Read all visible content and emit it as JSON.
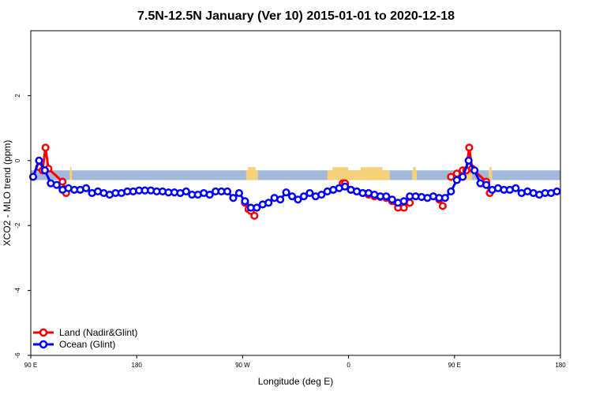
{
  "chart_data": {
    "type": "line",
    "title": "7.5N-12.5N January (Ver 10)   2015-01-01 to 2020-12-18",
    "xlabel": "Longitude (deg E)",
    "ylabel": "XCO2 - MLO trend (ppm)",
    "xlim": [
      90,
      540
    ],
    "ylim": [
      -6,
      4
    ],
    "x_ticks": [
      {
        "value": 90,
        "label": "90 E"
      },
      {
        "value": 180,
        "label": "180"
      },
      {
        "value": 270,
        "label": "90 W"
      },
      {
        "value": 360,
        "label": "0"
      },
      {
        "value": 450,
        "label": "90 E"
      },
      {
        "value": 540,
        "label": "180"
      }
    ],
    "y_ticks": [
      {
        "value": -6,
        "label": "-6"
      },
      {
        "value": -4,
        "label": "-4"
      },
      {
        "value": -2,
        "label": "-2"
      },
      {
        "value": 0,
        "label": "0"
      },
      {
        "value": 2,
        "label": "2"
      }
    ],
    "legend_position": "bottom-left",
    "colors": {
      "land": "#ff0000",
      "ocean": "#0000ff",
      "sea_band": "#a3b9d9",
      "land_band": "#f5d27a"
    },
    "band": {
      "ymin": -0.6,
      "ymax": -0.3
    },
    "land_band_segments": [
      {
        "x1": 123,
        "x2": 125
      },
      {
        "x1": 273,
        "x2": 283
      },
      {
        "x1": 274,
        "x2": 276
      },
      {
        "x1": 278,
        "x2": 280
      },
      {
        "x1": 342,
        "x2": 364
      },
      {
        "x1": 364,
        "x2": 395
      },
      {
        "x1": 414,
        "x2": 418
      },
      {
        "x1": 455,
        "x2": 465
      },
      {
        "x1": 479,
        "x2": 482
      }
    ],
    "series": [
      {
        "name": "Land (Nadir&Glint)",
        "color": "#ff0000",
        "segments": [
          {
            "x": [
              97,
              100,
              102.5,
              105,
              117,
              120
            ],
            "y": [
              -0.2,
              -0.3,
              0.4,
              -0.25,
              -0.65,
              -1.0
            ]
          },
          {
            "x": [
              272,
              275,
              277,
              280
            ],
            "y": [
              -1.3,
              -1.5,
              -1.55,
              -1.7
            ]
          },
          {
            "x": [
              355,
              357,
              362,
              367,
              372,
              377,
              382,
              387,
              392,
              397,
              402,
              407,
              412
            ],
            "y": [
              -0.7,
              -0.7,
              -0.9,
              -0.95,
              -1.0,
              -1.05,
              -1.1,
              -1.12,
              -1.15,
              -1.25,
              -1.45,
              -1.45,
              -1.3
            ]
          },
          {
            "x": [
              437,
              440
            ],
            "y": [
              -1.2,
              -1.4
            ]
          },
          {
            "x": [
              447,
              452,
              457,
              460,
              462.5,
              465,
              477,
              480
            ],
            "y": [
              -0.5,
              -0.4,
              -0.3,
              -0.3,
              0.4,
              -0.25,
              -0.65,
              -1.0
            ]
          }
        ]
      },
      {
        "name": "Ocean (Glint)",
        "color": "#0000ff",
        "segments": [
          {
            "x": [
              92,
              97,
              102,
              107,
              112,
              117,
              122,
              127,
              132,
              137,
              142,
              147,
              152,
              157,
              162,
              167,
              172,
              177,
              182,
              187,
              192,
              197,
              202,
              207,
              212,
              217,
              222,
              227,
              232,
              237,
              242,
              247,
              252,
              257,
              262,
              267,
              272,
              277,
              282,
              287,
              292,
              297,
              302,
              307,
              312,
              317,
              322,
              327,
              332,
              337,
              342,
              347,
              352,
              357,
              362,
              367,
              372,
              377,
              382,
              387,
              392,
              397,
              402,
              407,
              412,
              417,
              422,
              427,
              432,
              437,
              442,
              447,
              452,
              457,
              462,
              467,
              472,
              477,
              482,
              487,
              492,
              497,
              502,
              507,
              512,
              517,
              522,
              527,
              532,
              537
            ],
            "y": [
              -0.5,
              0.0,
              -0.3,
              -0.7,
              -0.75,
              -0.9,
              -0.85,
              -0.9,
              -0.9,
              -0.85,
              -1.0,
              -0.95,
              -1.0,
              -1.05,
              -1.0,
              -1.0,
              -0.95,
              -0.95,
              -0.92,
              -0.92,
              -0.92,
              -0.95,
              -0.95,
              -0.98,
              -0.98,
              -1.0,
              -0.95,
              -1.05,
              -1.05,
              -1.0,
              -1.05,
              -0.95,
              -0.95,
              -0.95,
              -1.15,
              -1.0,
              -1.25,
              -1.45,
              -1.45,
              -1.35,
              -1.3,
              -1.15,
              -1.2,
              -0.98,
              -1.1,
              -1.2,
              -1.1,
              -1.0,
              -1.1,
              -1.05,
              -0.95,
              -0.9,
              -0.85,
              -0.8,
              -0.9,
              -0.95,
              -1.0,
              -1.0,
              -1.05,
              -1.1,
              -1.1,
              -1.2,
              -1.3,
              -1.25,
              -1.1,
              -1.1,
              -1.12,
              -1.15,
              -1.1,
              -1.15,
              -1.15,
              -0.95,
              -0.6,
              -0.5,
              0.0,
              -0.3,
              -0.7,
              -0.75,
              -0.9,
              -0.85,
              -0.9,
              -0.9,
              -0.85,
              -1.0,
              -0.95,
              -1.0,
              -1.05,
              -1.0,
              -1.0,
              -0.95
            ]
          }
        ]
      }
    ]
  }
}
